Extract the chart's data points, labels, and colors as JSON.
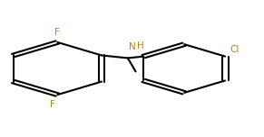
{
  "bg_color": "#ffffff",
  "bond_color": "#000000",
  "atom_colors": {
    "F": "#b8860b",
    "Cl": "#b8860b",
    "H": "#b8860b",
    "N": "#b8860b",
    "C": "#000000"
  },
  "line_width": 1.5,
  "figsize": [
    2.91,
    1.52
  ],
  "dpi": 100
}
